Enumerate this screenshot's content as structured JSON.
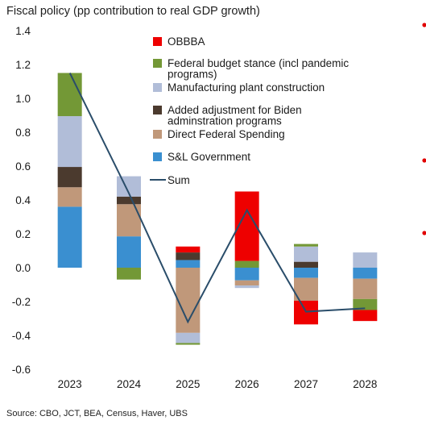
{
  "chart_data": {
    "type": "bar",
    "stacked": true,
    "title": "Fiscal policy (pp contribution to real GDP growth)",
    "source": "Source: CBO, JCT, BEA, Census, Haver, UBS",
    "categories": [
      "2023",
      "2024",
      "2025",
      "2026",
      "2027",
      "2028"
    ],
    "ylim": [
      -0.6,
      1.4
    ],
    "yticks": [
      "1.4",
      "1.2",
      "1.0",
      "0.8",
      "0.6",
      "0.4",
      "0.2",
      "0.0",
      "-0.2",
      "-0.4",
      "-0.6"
    ],
    "ytick_values": [
      1.4,
      1.2,
      1.0,
      0.8,
      0.6,
      0.4,
      0.2,
      0.0,
      -0.2,
      -0.4,
      -0.6
    ],
    "grid": false,
    "legend_position": "inside-top-center",
    "series": [
      {
        "name": "S&L Government",
        "color": "#3a8fd0",
        "values": [
          0.36,
          0.185,
          0.045,
          -0.075,
          -0.06,
          -0.065
        ]
      },
      {
        "name": "Direct Federal Spending",
        "color": "#c0987a",
        "values": [
          0.115,
          0.19,
          -0.385,
          -0.03,
          -0.135,
          -0.12
        ]
      },
      {
        "name": "Added adjustment for Biden adminstration programs",
        "color": "#4b3a2e",
        "values": [
          0.12,
          0.045,
          0.045,
          0.0,
          0.035,
          0.0
        ]
      },
      {
        "name": "Manufacturing plant construction",
        "color": "#b1bdd8",
        "values": [
          0.3,
          0.12,
          -0.06,
          -0.015,
          0.09,
          0.09
        ]
      },
      {
        "name": "Federal budget stance (incl pandemic programs)",
        "color": "#739836",
        "values": [
          0.255,
          -0.07,
          -0.01,
          0.04,
          0.015,
          -0.065
        ]
      },
      {
        "name": "OBBBA",
        "color": "#ee0000",
        "values": [
          0.0,
          0.0,
          0.035,
          0.41,
          -0.14,
          -0.065
        ]
      }
    ],
    "legend_order": [
      "OBBBA",
      "Federal budget stance (incl pandemic programs)",
      "Manufacturing plant construction",
      "Added adjustment for Biden adminstration programs",
      "Direct Federal Spending",
      "S&L Government",
      "Sum"
    ],
    "line": {
      "name": "Sum",
      "color": "#2a4d6a",
      "values": [
        1.15,
        0.44,
        -0.32,
        0.34,
        -0.26,
        -0.24
      ]
    }
  }
}
